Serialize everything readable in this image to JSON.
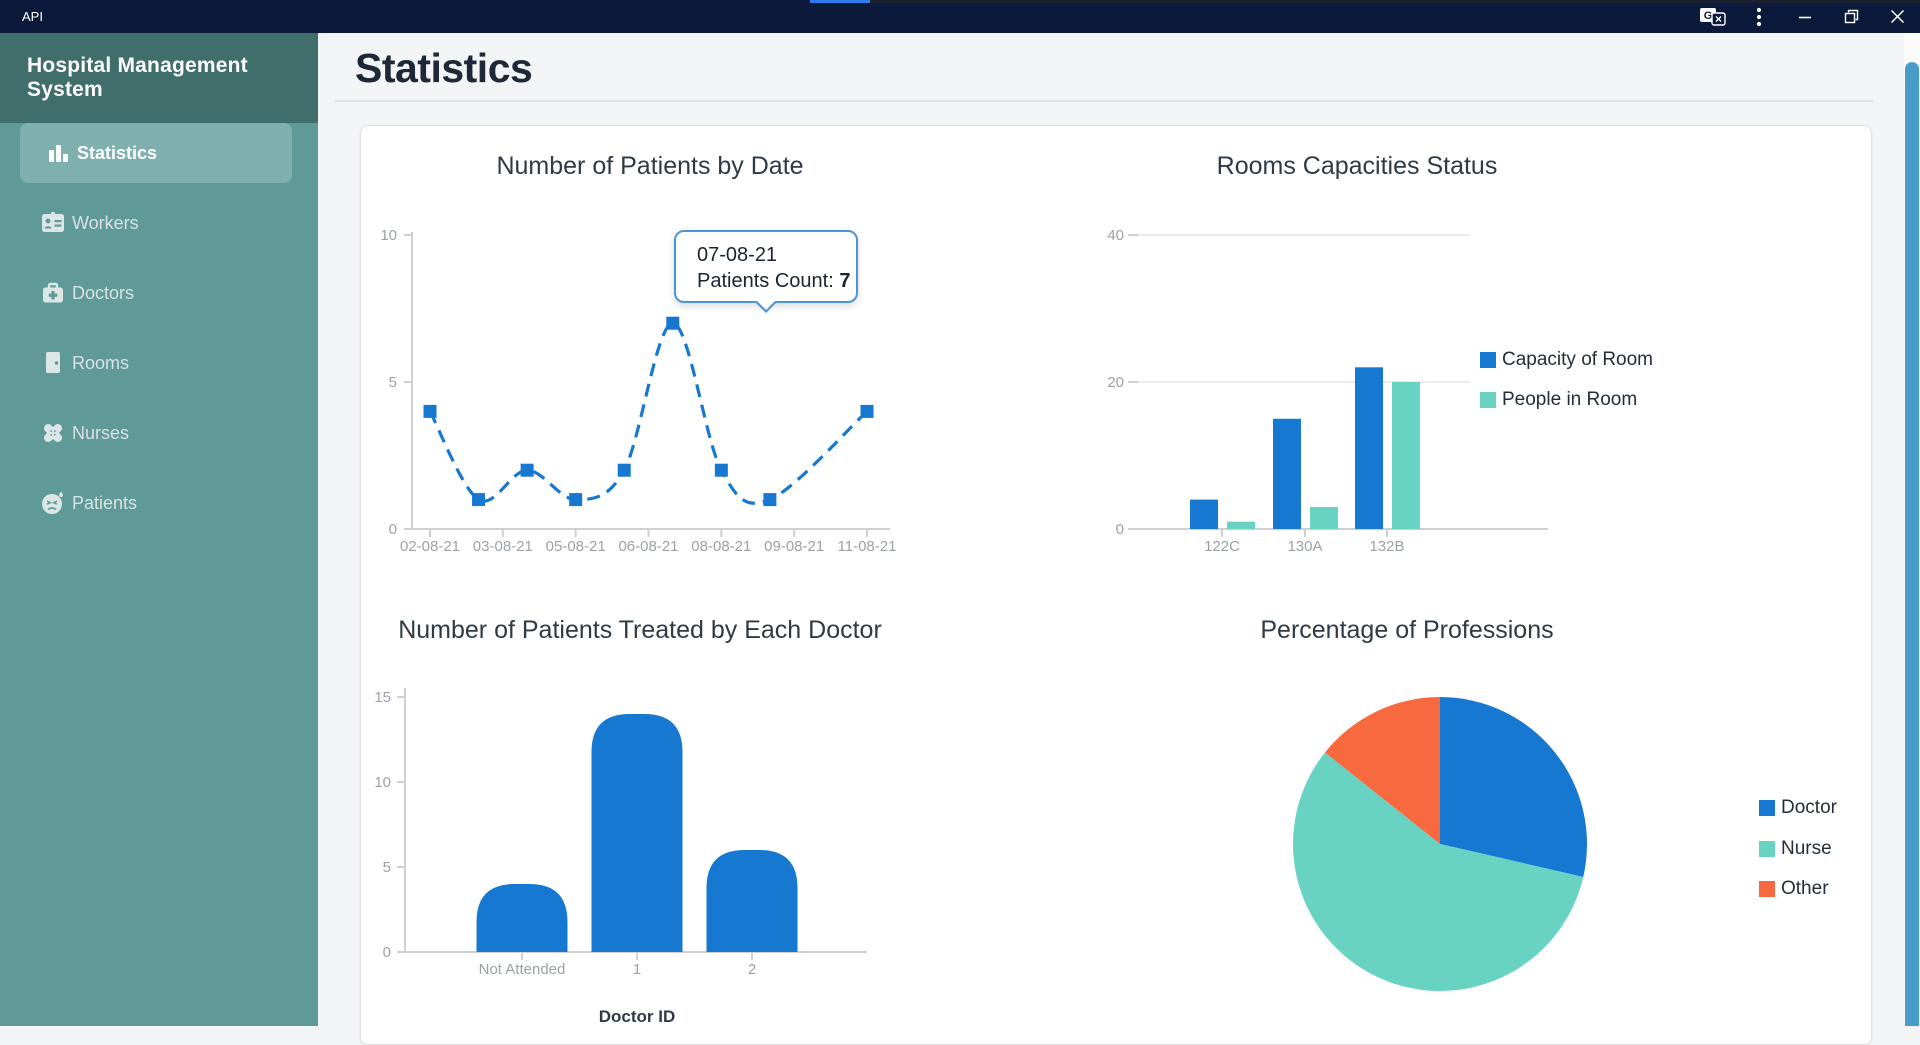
{
  "titlebar": {
    "app_menu_label": "API",
    "background": "#0b1a3a",
    "accent_color": "#2e7df0",
    "icons": [
      "google-translate-icon",
      "kebab-menu-icon",
      "minimize-icon",
      "restore-icon",
      "close-icon"
    ]
  },
  "sidebar": {
    "title": "Hospital Management System",
    "background": "#609a98",
    "header_background": "#406e6b",
    "active_background": "#7fb0ae",
    "items": [
      {
        "label": "Statistics",
        "icon": "bar-chart-icon",
        "active": true
      },
      {
        "label": "Workers",
        "icon": "id-badge-icon",
        "active": false
      },
      {
        "label": "Doctors",
        "icon": "medical-bag-icon",
        "active": false
      },
      {
        "label": "Rooms",
        "icon": "door-icon",
        "active": false
      },
      {
        "label": "Nurses",
        "icon": "bandages-icon",
        "active": false
      },
      {
        "label": "Patients",
        "icon": "sick-face-icon",
        "active": false
      }
    ]
  },
  "main": {
    "heading": "Statistics"
  },
  "scrollbar": {
    "thumb_color": "#4a9cc8"
  },
  "colors": {
    "blue": "#1778d2",
    "teal": "#68d3c2",
    "orange": "#f9693f",
    "axis_text": "#9ba1a7",
    "axis_line": "#cfd0d2",
    "grid_line": "#e5e5e5",
    "chart_title": "#2f3a46"
  },
  "chart_data": [
    {
      "id": "patients_by_date",
      "type": "line",
      "title": "Number of Patients by Date",
      "line_style": "dashed",
      "marker": "square",
      "color": "#1778d2",
      "points": [
        {
          "date": "02-08-21",
          "day": 2,
          "value": 4
        },
        {
          "date": "03-08-21",
          "day": 3,
          "value": 1
        },
        {
          "date": "04-08-21",
          "day": 4,
          "value": 2
        },
        {
          "date": "05-08-21",
          "day": 5,
          "value": 1
        },
        {
          "date": "06-08-21",
          "day": 6,
          "value": 2
        },
        {
          "date": "07-08-21",
          "day": 7,
          "value": 7
        },
        {
          "date": "08-08-21",
          "day": 8,
          "value": 2
        },
        {
          "date": "09-08-21",
          "day": 9,
          "value": 1
        },
        {
          "date": "11-08-21",
          "day": 11,
          "value": 4
        }
      ],
      "x_tick_labels": [
        "02-08-21",
        "03-08-21",
        "05-08-21",
        "06-08-21",
        "08-08-21",
        "09-08-21",
        "11-08-21"
      ],
      "yticks": [
        0,
        5,
        10
      ],
      "ylim": [
        0,
        10
      ],
      "tooltip": {
        "title": "07-08-21",
        "label": "Patients Count: ",
        "value": "7",
        "point_date": "07-08-21"
      }
    },
    {
      "id": "rooms_capacities",
      "type": "bar",
      "title": "Rooms Capacities Status",
      "categories": [
        "122C",
        "130A",
        "132B"
      ],
      "series": [
        {
          "name": "Capacity of Room",
          "color": "#1778d2",
          "values": [
            4,
            15,
            22
          ]
        },
        {
          "name": "People in Room",
          "color": "#68d3c2",
          "values": [
            1,
            3,
            20
          ]
        }
      ],
      "yticks": [
        0,
        20,
        40
      ],
      "ylim": [
        0,
        40
      ],
      "grid": true,
      "legend_position": "right"
    },
    {
      "id": "patients_per_doctor",
      "type": "bar",
      "title": "Number of Patients Treated by Each Doctor",
      "categories": [
        "Not Attended",
        "1",
        "2"
      ],
      "values": [
        4,
        14,
        6
      ],
      "color": "#1778d2",
      "xlabel": "Doctor ID",
      "yticks": [
        0,
        5,
        10,
        15
      ],
      "ylim": [
        0,
        15
      ],
      "rounded_top": true
    },
    {
      "id": "professions",
      "type": "pie",
      "title": "Percentage of Professions",
      "start_angle": "top",
      "direction": "clockwise",
      "slices": [
        {
          "label": "Doctor",
          "percent": 28.6,
          "color": "#1778d2"
        },
        {
          "label": "Nurse",
          "percent": 57.1,
          "color": "#68d3c2"
        },
        {
          "label": "Other",
          "percent": 14.3,
          "color": "#f9693f"
        }
      ],
      "legend_position": "right"
    }
  ]
}
